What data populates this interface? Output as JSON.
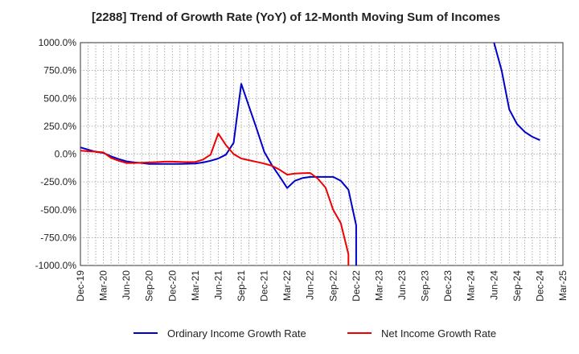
{
  "chart_data": {
    "type": "line",
    "title": "[2288]  Trend of Growth Rate (YoY) of 12-Month Moving Sum of Incomes",
    "xlabel": "",
    "ylabel": "",
    "ylim": [
      -1000,
      1000
    ],
    "yticks": [
      1000,
      750,
      500,
      250,
      0,
      -250,
      -500,
      -750,
      -1000
    ],
    "ytick_labels": [
      "1000.0%",
      "750.0%",
      "500.0%",
      "250.0%",
      "0.0%",
      "-250.0%",
      "-500.0%",
      "-750.0%",
      "-1000.0%"
    ],
    "x_months": [
      "2019-12",
      "2020-01",
      "2020-02",
      "2020-03",
      "2020-04",
      "2020-05",
      "2020-06",
      "2020-07",
      "2020-08",
      "2020-09",
      "2020-10",
      "2020-11",
      "2020-12",
      "2021-01",
      "2021-02",
      "2021-03",
      "2021-04",
      "2021-05",
      "2021-06",
      "2021-07",
      "2021-08",
      "2021-09",
      "2021-10",
      "2021-11",
      "2021-12",
      "2022-01",
      "2022-02",
      "2022-03",
      "2022-04",
      "2022-05",
      "2022-06",
      "2022-07",
      "2022-08",
      "2022-09",
      "2022-10",
      "2022-11",
      "2022-12",
      "2023-01",
      "2023-02",
      "2023-03",
      "2023-04",
      "2023-05",
      "2023-06",
      "2023-07",
      "2023-08",
      "2023-09",
      "2023-10",
      "2023-11",
      "2023-12",
      "2024-01",
      "2024-02",
      "2024-03",
      "2024-04",
      "2024-05",
      "2024-06",
      "2024-07",
      "2024-08",
      "2024-09",
      "2024-10",
      "2024-11",
      "2024-12",
      "2025-01",
      "2025-02",
      "2025-03"
    ],
    "x_tick_labels": [
      "Dec-19",
      "Mar-20",
      "Jun-20",
      "Sep-20",
      "Dec-20",
      "Mar-21",
      "Jun-21",
      "Sep-21",
      "Dec-21",
      "Mar-22",
      "Jun-22",
      "Sep-22",
      "Dec-22",
      "Mar-23",
      "Jun-23",
      "Sep-23",
      "Dec-23",
      "Mar-24",
      "Jun-24",
      "Sep-24",
      "Dec-24",
      "Mar-25"
    ],
    "grid": true,
    "legend_position": "bottom",
    "series": [
      {
        "name": "Ordinary Income Growth Rate",
        "color": "#0000cc",
        "points": [
          [
            "2019-12",
            60
          ],
          [
            "2020-01",
            40
          ],
          [
            "2020-02",
            20
          ],
          [
            "2020-03",
            10
          ],
          [
            "2020-04",
            -20
          ],
          [
            "2020-05",
            -45
          ],
          [
            "2020-06",
            -65
          ],
          [
            "2020-07",
            -75
          ],
          [
            "2020-08",
            -80
          ],
          [
            "2020-09",
            -88
          ],
          [
            "2020-10",
            -88
          ],
          [
            "2020-11",
            -88
          ],
          [
            "2020-12",
            -88
          ],
          [
            "2021-01",
            -88
          ],
          [
            "2021-02",
            -87
          ],
          [
            "2021-03",
            -85
          ],
          [
            "2021-04",
            -75
          ],
          [
            "2021-05",
            -60
          ],
          [
            "2021-06",
            -40
          ],
          [
            "2021-07",
            -5
          ],
          [
            "2021-08",
            100
          ],
          [
            "2021-09",
            630
          ],
          [
            "2021-10",
            430
          ],
          [
            "2021-11",
            230
          ],
          [
            "2021-12",
            20
          ],
          [
            "2022-01",
            -100
          ],
          [
            "2022-02",
            -200
          ],
          [
            "2022-03",
            -305
          ],
          [
            "2022-04",
            -240
          ],
          [
            "2022-05",
            -215
          ],
          [
            "2022-06",
            -205
          ],
          [
            "2022-07",
            -205
          ],
          [
            "2022-08",
            -205
          ],
          [
            "2022-09",
            -205
          ],
          [
            "2022-10",
            -240
          ],
          [
            "2022-11",
            -320
          ],
          [
            "2022-12",
            -640
          ],
          [
            "2022-12",
            -1000
          ],
          [
            null,
            null
          ],
          [
            "2024-06",
            1000
          ],
          [
            "2024-07",
            750
          ],
          [
            "2024-08",
            400
          ],
          [
            "2024-09",
            270
          ],
          [
            "2024-10",
            200
          ],
          [
            "2024-11",
            155
          ],
          [
            "2024-12",
            125
          ]
        ]
      },
      {
        "name": "Net Income Growth Rate",
        "color": "#ee0000",
        "points": [
          [
            "2019-12",
            30
          ],
          [
            "2020-01",
            25
          ],
          [
            "2020-02",
            22
          ],
          [
            "2020-03",
            15
          ],
          [
            "2020-04",
            -35
          ],
          [
            "2020-05",
            -60
          ],
          [
            "2020-06",
            -80
          ],
          [
            "2020-07",
            -80
          ],
          [
            "2020-08",
            -78
          ],
          [
            "2020-09",
            -75
          ],
          [
            "2020-10",
            -72
          ],
          [
            "2020-11",
            -68
          ],
          [
            "2020-12",
            -68
          ],
          [
            "2021-01",
            -70
          ],
          [
            "2021-02",
            -72
          ],
          [
            "2021-03",
            -70
          ],
          [
            "2021-04",
            -50
          ],
          [
            "2021-05",
            -5
          ],
          [
            "2021-06",
            185
          ],
          [
            "2021-07",
            80
          ],
          [
            "2021-08",
            0
          ],
          [
            "2021-09",
            -40
          ],
          [
            "2021-10",
            -55
          ],
          [
            "2021-11",
            -70
          ],
          [
            "2021-12",
            -85
          ],
          [
            "2022-01",
            -105
          ],
          [
            "2022-02",
            -140
          ],
          [
            "2022-03",
            -185
          ],
          [
            "2022-04",
            -175
          ],
          [
            "2022-05",
            -172
          ],
          [
            "2022-06",
            -170
          ],
          [
            "2022-07",
            -220
          ],
          [
            "2022-08",
            -300
          ],
          [
            "2022-09",
            -500
          ],
          [
            "2022-10",
            -620
          ],
          [
            "2022-11",
            -900
          ],
          [
            "2022-11",
            -1000
          ]
        ]
      }
    ]
  }
}
